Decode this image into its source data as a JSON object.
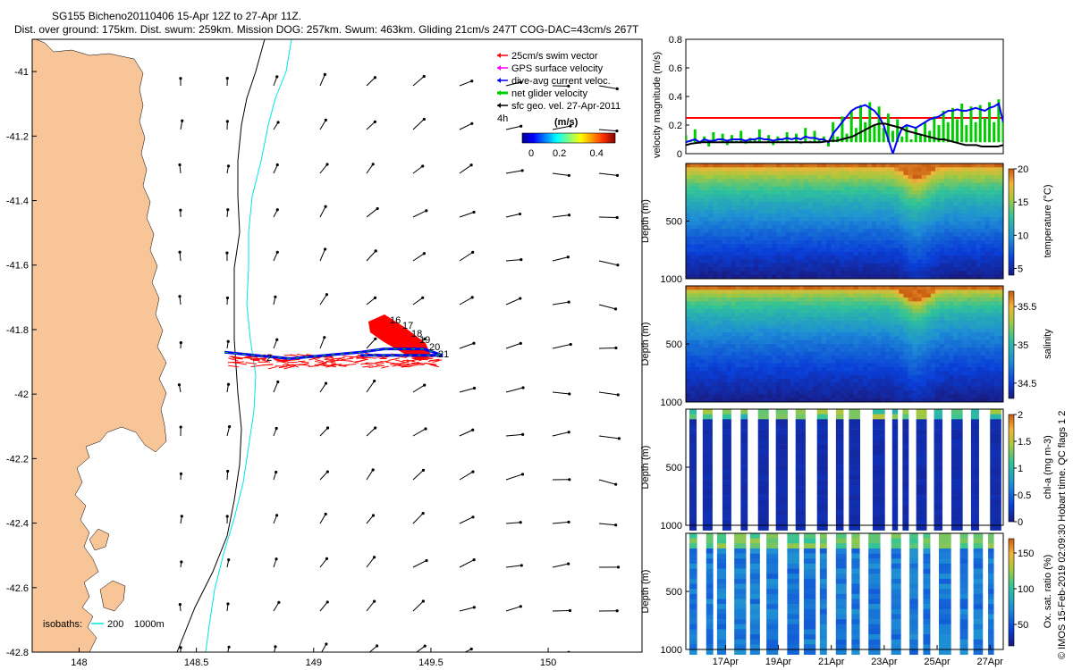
{
  "figure": {
    "title_line1": "SG155 Bicheno20110406 15-Apr 12Z to 27-Apr 11Z.",
    "title_line2": "Dist. over ground: 175km. Dist. swum: 259km. Mission DOG: 257km. Swum: 463km. Gliding 21cm/s 247T COG-DAC=43cm/s 267T",
    "watermark": "© IMOS 15-Feb-2019 02:09:30 Hobart time. QC flags 1  2"
  },
  "chart_data": [
    {
      "id": "map",
      "type": "scatter",
      "x_ticks": [
        "148",
        "148.5",
        "149",
        "149.5",
        "150"
      ],
      "x_tick_values": [
        148,
        148.5,
        149,
        149.5,
        150
      ],
      "y_ticks": [
        "-41",
        "-41.2",
        "-41.4",
        "-41.6",
        "-41.8",
        "-42",
        "-42.2",
        "-42.4",
        "-42.6",
        "-42.8"
      ],
      "y_tick_values": [
        -41,
        -41.2,
        -41.4,
        -41.6,
        -41.8,
        -42,
        -42.2,
        -42.4,
        -42.6,
        -42.8
      ],
      "xlim": [
        147.8,
        150.4
      ],
      "ylim": [
        -42.8,
        -40.9
      ],
      "legend": [
        {
          "label": "25cm/s swim vector",
          "color": "#ff0000"
        },
        {
          "label": "GPS surface velocity",
          "color": "#ff00ff"
        },
        {
          "label": "dive-avg current veloc.",
          "color": "#0000ff"
        },
        {
          "label": "net glider velocity",
          "color": "#00cc00"
        },
        {
          "label": "sfc geo. vel. 27-Apr-2011",
          "color": "#000000"
        }
      ],
      "legend_placement": "top-right",
      "legend_prefix": "4h",
      "colorbar_label": "(m/s)",
      "colorbar_ticks": [
        "0",
        "0.2",
        "0.4"
      ],
      "isobaths_label": "isobaths:",
      "isobaths_values": [
        "200",
        "1000m"
      ],
      "isobath_colors": {
        "200": "#00e5e5",
        "1000m": "#000000"
      },
      "land_color": "#f7c597",
      "dive_labels": [
        "2",
        "16",
        "17",
        "18",
        "19",
        "20",
        "21"
      ],
      "track": [
        [
          148.62,
          -41.87
        ],
        [
          148.75,
          -41.88
        ],
        [
          148.9,
          -41.89
        ],
        [
          149.05,
          -41.88
        ],
        [
          149.2,
          -41.87
        ],
        [
          149.3,
          -41.86
        ],
        [
          149.4,
          -41.86
        ],
        [
          149.47,
          -41.86
        ],
        [
          149.55,
          -41.88
        ],
        [
          149.42,
          -41.88
        ],
        [
          149.3,
          -41.88
        ],
        [
          149.2,
          -41.88
        ]
      ]
    },
    {
      "id": "velocity",
      "type": "line",
      "ylabel": "velocity magnitude (m/s)",
      "ylim": [
        0,
        0.8
      ],
      "y_ticks": [
        "0",
        "0.2",
        "0.4",
        "0.6",
        "0.8"
      ],
      "y_tick_values": [
        0,
        0.2,
        0.4,
        0.6,
        0.8
      ],
      "series": [
        {
          "color": "#ff0000",
          "values": [
            0.25,
            0.25
          ]
        },
        {
          "color": "#00cc00",
          "values": [
            0.13,
            0.09,
            0.17,
            0.07,
            0.12,
            0.05,
            0.15,
            0.08,
            0.14,
            0.06,
            0.13,
            0.09,
            0.16,
            0.07,
            0.11,
            0.1,
            0.17,
            0.08,
            0.13,
            0.06,
            0.12,
            0.09,
            0.15,
            0.08,
            0.14,
            0.07,
            0.18,
            0.09,
            0.16,
            0.1,
            0.12,
            0.05,
            0.22,
            0.12,
            0.26,
            0.14,
            0.3,
            0.18,
            0.34,
            0.22,
            0.36,
            0.2,
            0.33,
            0.18,
            0.28,
            0.16,
            0.24,
            0.12,
            0.2,
            0.1,
            0.18,
            0.14,
            0.22,
            0.16,
            0.26,
            0.2,
            0.3,
            0.22,
            0.32,
            0.24,
            0.35,
            0.2,
            0.33,
            0.22,
            0.34,
            0.25,
            0.36,
            0.22,
            0.38,
            0.24
          ]
        },
        {
          "color": "#0000ff",
          "values": [
            0.08,
            0.09,
            0.1,
            0.08,
            0.1,
            0.09,
            0.09,
            0.1,
            0.1,
            0.09,
            0.1,
            0.1,
            0.1,
            0.09,
            0.1,
            0.1,
            0.11,
            0.1,
            0.1,
            0.09,
            0.1,
            0.1,
            0.11,
            0.1,
            0.11,
            0.1,
            0.12,
            0.11,
            0.11,
            0.1,
            0.1,
            0.08,
            0.14,
            0.18,
            0.22,
            0.26,
            0.3,
            0.32,
            0.33,
            0.34,
            0.32,
            0.3,
            0.26,
            0.2,
            0.1,
            0.0,
            0.1,
            0.18,
            0.2,
            0.19,
            0.18,
            0.2,
            0.22,
            0.24,
            0.25,
            0.26,
            0.28,
            0.3,
            0.3,
            0.31,
            0.3,
            0.3,
            0.31,
            0.32,
            0.31,
            0.3,
            0.32,
            0.33,
            0.35,
            0.22
          ]
        },
        {
          "color": "#000000",
          "values": [
            0.06,
            0.07,
            0.075,
            0.08,
            0.08,
            0.08,
            0.08,
            0.08,
            0.08,
            0.08,
            0.08,
            0.08,
            0.08,
            0.08,
            0.08,
            0.08,
            0.08,
            0.08,
            0.08,
            0.08,
            0.08,
            0.08,
            0.08,
            0.08,
            0.08,
            0.08,
            0.085,
            0.09,
            0.09,
            0.1,
            0.11,
            0.12,
            0.14,
            0.16,
            0.18,
            0.2,
            0.21,
            0.21,
            0.2,
            0.19,
            0.18,
            0.16,
            0.15,
            0.14,
            0.13,
            0.12,
            0.11,
            0.1,
            0.1,
            0.09,
            0.08,
            0.07,
            0.06,
            0.06,
            0.06,
            0.05,
            0.05,
            0.05,
            0.05,
            0.06
          ]
        }
      ]
    },
    {
      "id": "temperature",
      "type": "heatmap",
      "ylabel": "Depth (m)",
      "y_ticks": [
        "500",
        "1000"
      ],
      "y_tick_values": [
        500,
        1000
      ],
      "ylim": [
        1000,
        0
      ],
      "colorbar_label": "temperature (°C)",
      "colorbar_ticks": [
        "5",
        "10",
        "15",
        "20"
      ],
      "colorbar_tick_values": [
        5,
        10,
        15,
        20
      ],
      "clim": [
        4,
        20
      ]
    },
    {
      "id": "salinity",
      "type": "heatmap",
      "ylabel": "Depth (m)",
      "y_ticks": [
        "500",
        "1000"
      ],
      "y_tick_values": [
        500,
        1000
      ],
      "ylim": [
        1000,
        0
      ],
      "colorbar_label": "salinity",
      "colorbar_ticks": [
        "34.5",
        "35",
        "35.5"
      ],
      "colorbar_tick_values": [
        34.5,
        35,
        35.5
      ],
      "clim": [
        34.3,
        35.7
      ]
    },
    {
      "id": "chla",
      "type": "heatmap",
      "ylabel": "Depth (m)",
      "y_ticks": [
        "500",
        "1000"
      ],
      "y_tick_values": [
        500,
        1000
      ],
      "ylim": [
        1000,
        0
      ],
      "colorbar_label": "chl-a (mg m-3)",
      "colorbar_ticks": [
        "0",
        "0.5",
        "1",
        "1.5",
        "2"
      ],
      "colorbar_tick_values": [
        0,
        0.5,
        1,
        1.5,
        2
      ],
      "clim": [
        0,
        2
      ]
    },
    {
      "id": "oxygen",
      "type": "heatmap",
      "ylabel": "Depth (m)",
      "y_ticks": [
        "500",
        "1000"
      ],
      "y_tick_values": [
        500,
        1000
      ],
      "ylim": [
        1000,
        0
      ],
      "colorbar_label": "Ox. sat. ratio (%)",
      "colorbar_ticks": [
        "50",
        "100",
        "150"
      ],
      "colorbar_tick_values": [
        50,
        100,
        150
      ],
      "clim": [
        20,
        170
      ],
      "x_ticks": [
        "17Apr",
        "19Apr",
        "21Apr",
        "23Apr",
        "25Apr",
        "27Apr"
      ],
      "x_tick_values": [
        17,
        19,
        21,
        23,
        25,
        27
      ],
      "xlim": [
        15.5,
        27.5
      ]
    }
  ]
}
